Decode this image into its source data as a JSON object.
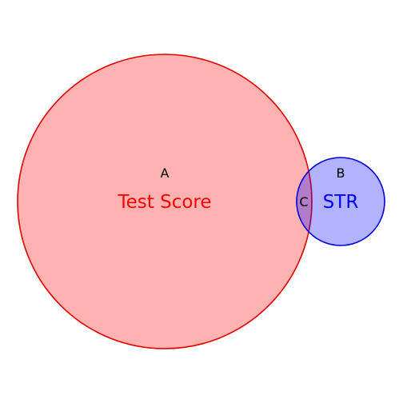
{
  "diagram": {
    "type": "venn",
    "sets": [
      {
        "id": "A",
        "region_label": "A",
        "name": "Test Score",
        "fill": "#ff0000",
        "fill_opacity": 0.3,
        "stroke": "#e00000"
      },
      {
        "id": "B",
        "region_label": "B",
        "name": "STR",
        "fill": "#0000ff",
        "fill_opacity": 0.3,
        "stroke": "#0000dd"
      }
    ],
    "intersection": {
      "region_label": "C"
    }
  }
}
